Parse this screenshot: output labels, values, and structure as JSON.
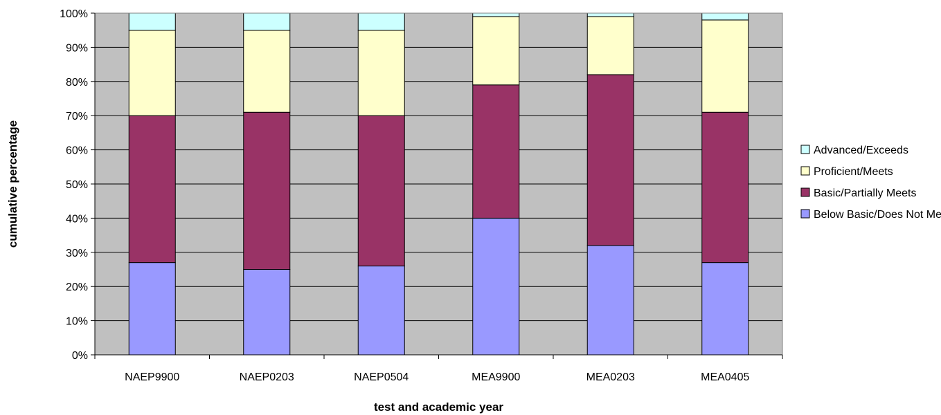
{
  "chart_data": {
    "type": "bar",
    "stacked": true,
    "categories": [
      "NAEP9900",
      "NAEP0203",
      "NAEP0504",
      "MEA9900",
      "MEA0203",
      "MEA0405"
    ],
    "series": [
      {
        "name": "Below Basic/Does Not Meet",
        "color": "#9999ff",
        "values": [
          27,
          25,
          26,
          40,
          32,
          27
        ]
      },
      {
        "name": "Basic/Partially Meets",
        "color": "#993366",
        "values": [
          43,
          46,
          44,
          39,
          50,
          44
        ]
      },
      {
        "name": "Proficient/Meets",
        "color": "#ffffcc",
        "values": [
          25,
          24,
          25,
          20,
          17,
          27
        ]
      },
      {
        "name": "Advanced/Exceeds",
        "color": "#ccffff",
        "values": [
          5,
          5,
          5,
          1,
          1,
          2
        ]
      }
    ],
    "legend_order": [
      "Advanced/Exceeds",
      "Proficient/Meets",
      "Basic/Partially Meets",
      "Below Basic/Does Not Meet"
    ],
    "xlabel": "test and academic year",
    "ylabel": "cumulative percentage",
    "ylim": [
      0,
      100
    ],
    "yticks": [
      "0%",
      "10%",
      "20%",
      "30%",
      "40%",
      "50%",
      "60%",
      "70%",
      "80%",
      "90%",
      "100%"
    ],
    "grid": true,
    "legend_position": "right",
    "plot_background": "#c0c0c0"
  }
}
